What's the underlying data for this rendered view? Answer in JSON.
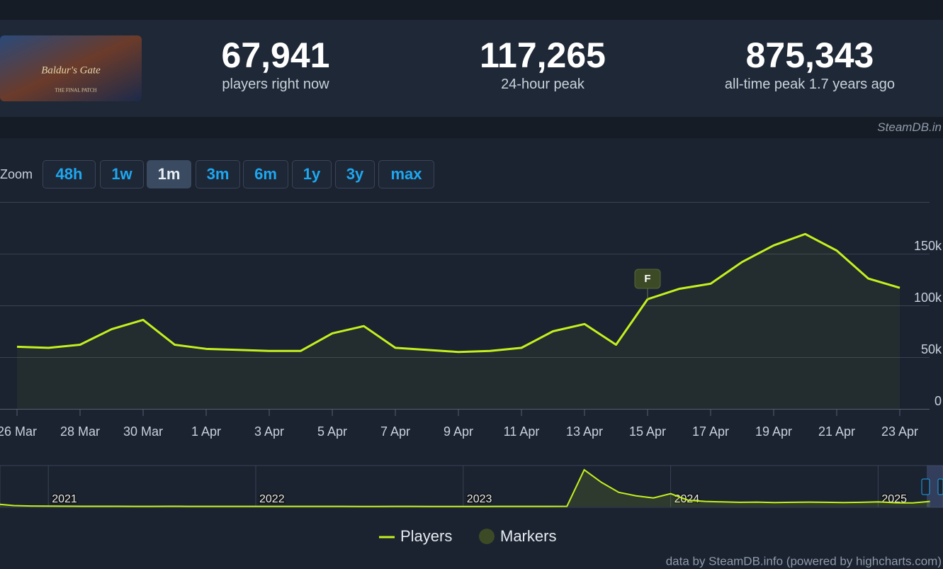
{
  "game": {
    "image_title": "Baldur's Gate",
    "image_subtitle": "THE FINAL PATCH"
  },
  "stats": [
    {
      "value": "67,941",
      "label": "players right now"
    },
    {
      "value": "117,265",
      "label": "24-hour peak"
    },
    {
      "value": "875,343",
      "label": "all-time peak 1.7 years ago"
    }
  ],
  "brand": "SteamDB.in",
  "zoom": {
    "label": "Zoom",
    "buttons": [
      "48h",
      "1w",
      "1m",
      "3m",
      "6m",
      "1y",
      "3y",
      "max"
    ],
    "active": "1m"
  },
  "chart_data": [
    {
      "type": "line",
      "categories": [
        "26 Mar",
        null,
        "28 Mar",
        null,
        "30 Mar",
        null,
        "1 Apr",
        null,
        "3 Apr",
        null,
        "5 Apr",
        null,
        "7 Apr",
        null,
        "9 Apr",
        null,
        "11 Apr",
        null,
        "13 Apr",
        null,
        "15 Apr",
        null,
        "17 Apr",
        null,
        "19 Apr",
        null,
        "21 Apr",
        null,
        "23 Apr"
      ],
      "series": [
        {
          "name": "Players",
          "color": "#c4f01e",
          "values": [
            60000,
            59000,
            62000,
            77000,
            86000,
            62000,
            58000,
            57000,
            56000,
            56000,
            73000,
            80000,
            59000,
            57000,
            55000,
            56000,
            59000,
            75000,
            82000,
            62000,
            106000,
            116000,
            121000,
            142000,
            158000,
            169000,
            153000,
            126000,
            117000
          ]
        }
      ],
      "markers": {
        "name": "Markers",
        "color": "#3d4a26",
        "points": [
          {
            "category": "15 Apr",
            "label": "F"
          }
        ]
      },
      "ylim": [
        0,
        200000
      ],
      "yticks": [
        0,
        {
          "value": 50000,
          "label": "50k"
        },
        {
          "value": 100000,
          "label": "100k"
        },
        {
          "value": 150000,
          "label": "150k"
        }
      ],
      "grid": true
    },
    {
      "type": "area",
      "categories": [
        null,
        null,
        null,
        "2021",
        null,
        null,
        null,
        null,
        null,
        null,
        null,
        null,
        null,
        null,
        null,
        "2022",
        null,
        null,
        null,
        null,
        null,
        null,
        null,
        null,
        null,
        null,
        null,
        "2023",
        null,
        null,
        null,
        null,
        null,
        null,
        null,
        null,
        null,
        null,
        null,
        "2024",
        null,
        null,
        null,
        null,
        null,
        null,
        null,
        null,
        null,
        null,
        null,
        "2025",
        null,
        null,
        null
      ],
      "series": [
        {
          "color": "#c4f01e",
          "values": [
            60000,
            25000,
            15000,
            12000,
            10000,
            9000,
            8000,
            8000,
            7000,
            7000,
            8000,
            7000,
            7000,
            6000,
            6000,
            6000,
            6000,
            7000,
            6000,
            6000,
            6000,
            5000,
            5000,
            6000,
            6000,
            5000,
            5000,
            5000,
            5000,
            6000,
            6000,
            6000,
            7000,
            9000,
            850000,
            560000,
            330000,
            250000,
            200000,
            300000,
            150000,
            120000,
            110000,
            100000,
            105000,
            95000,
            100000,
            105000,
            100000,
            95000,
            100000,
            110000,
            90000,
            85000,
            120000
          ]
        }
      ],
      "ylim": [
        0,
        900000
      ]
    }
  ],
  "credit": "data by SteamDB.info (powered by highcharts.com)"
}
